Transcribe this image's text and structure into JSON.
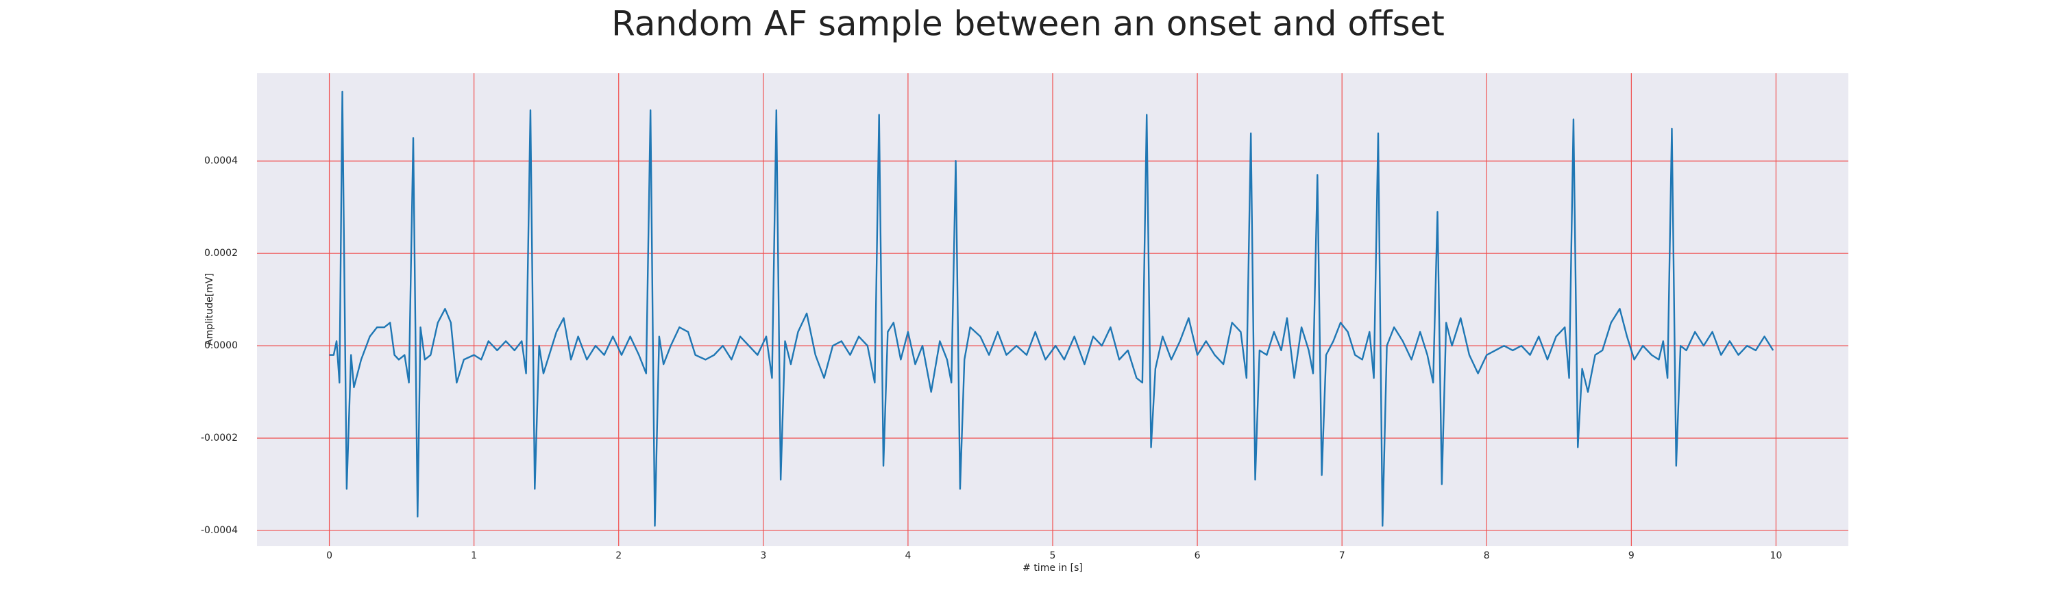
{
  "chart_data": {
    "type": "line",
    "title": "Random AF sample between an onset and offset",
    "x_label": "# time in [s]",
    "y_label": "Amplitude[mV]",
    "color": "#1f77b4",
    "grid": true,
    "grid_color": "#f05050",
    "background": "#eaeaf2",
    "xlim": [
      -0.5,
      10.5
    ],
    "ylim": [
      -0.000434,
      0.00059
    ],
    "xticks": [
      0,
      1,
      2,
      3,
      4,
      5,
      6,
      7,
      8,
      9,
      10
    ],
    "yticks": [
      -0.0004,
      -0.0002,
      {
        "value": 0,
        "label": "0.0000"
      },
      0.0002,
      0.0004
    ],
    "x": [
      0.0,
      0.03,
      0.05,
      0.07,
      0.09,
      0.12,
      0.15,
      0.17,
      0.22,
      0.28,
      0.33,
      0.38,
      0.42,
      0.45,
      0.48,
      0.52,
      0.55,
      0.58,
      0.61,
      0.63,
      0.66,
      0.7,
      0.75,
      0.8,
      0.84,
      0.88,
      0.93,
      1.0,
      1.05,
      1.1,
      1.16,
      1.22,
      1.28,
      1.33,
      1.36,
      1.39,
      1.42,
      1.45,
      1.48,
      1.52,
      1.57,
      1.62,
      1.67,
      1.72,
      1.78,
      1.84,
      1.9,
      1.96,
      2.02,
      2.08,
      2.14,
      2.19,
      2.22,
      2.25,
      2.28,
      2.31,
      2.36,
      2.42,
      2.48,
      2.53,
      2.6,
      2.66,
      2.72,
      2.78,
      2.84,
      2.9,
      2.96,
      3.02,
      3.06,
      3.09,
      3.12,
      3.15,
      3.19,
      3.24,
      3.3,
      3.36,
      3.42,
      3.48,
      3.54,
      3.6,
      3.66,
      3.72,
      3.77,
      3.8,
      3.83,
      3.86,
      3.9,
      3.95,
      4.0,
      4.05,
      4.1,
      4.16,
      4.22,
      4.27,
      4.3,
      4.33,
      4.36,
      4.39,
      4.43,
      4.5,
      4.56,
      4.62,
      4.68,
      4.75,
      4.82,
      4.88,
      4.95,
      5.02,
      5.08,
      5.15,
      5.22,
      5.28,
      5.34,
      5.4,
      5.46,
      5.52,
      5.58,
      5.62,
      5.65,
      5.68,
      5.71,
      5.76,
      5.82,
      5.88,
      5.94,
      6.0,
      6.06,
      6.12,
      6.18,
      6.24,
      6.3,
      6.34,
      6.37,
      6.4,
      6.43,
      6.48,
      6.53,
      6.58,
      6.62,
      6.67,
      6.72,
      6.77,
      6.8,
      6.83,
      6.86,
      6.89,
      6.94,
      6.99,
      7.04,
      7.09,
      7.14,
      7.19,
      7.22,
      7.25,
      7.28,
      7.31,
      7.36,
      7.42,
      7.48,
      7.54,
      7.59,
      7.63,
      7.66,
      7.69,
      7.72,
      7.76,
      7.82,
      7.88,
      7.94,
      8.0,
      8.06,
      8.12,
      8.18,
      8.24,
      8.3,
      8.36,
      8.42,
      8.48,
      8.54,
      8.57,
      8.6,
      8.63,
      8.66,
      8.7,
      8.75,
      8.8,
      8.86,
      8.92,
      8.97,
      9.02,
      9.08,
      9.14,
      9.19,
      9.22,
      9.25,
      9.28,
      9.31,
      9.34,
      9.38,
      9.44,
      9.5,
      9.56,
      9.62,
      9.68,
      9.74,
      9.8,
      9.86,
      9.92,
      9.98
    ],
    "values": [
      -2e-05,
      -2e-05,
      1e-05,
      -8e-05,
      0.00055,
      -0.00031,
      -2e-05,
      -9e-05,
      -3e-05,
      2e-05,
      4e-05,
      4e-05,
      5e-05,
      -2e-05,
      -3e-05,
      -2e-05,
      -8e-05,
      0.00045,
      -0.00037,
      4e-05,
      -3e-05,
      -2e-05,
      5e-05,
      8e-05,
      5e-05,
      -8e-05,
      -3e-05,
      -2e-05,
      -3e-05,
      1e-05,
      -1e-05,
      1e-05,
      -1e-05,
      1e-05,
      -6e-05,
      0.00051,
      -0.00031,
      0.0,
      -6e-05,
      -2e-05,
      3e-05,
      6e-05,
      -3e-05,
      2e-05,
      -3e-05,
      0.0,
      -2e-05,
      2e-05,
      -2e-05,
      2e-05,
      -2e-05,
      -6e-05,
      0.00051,
      -0.00039,
      2e-05,
      -4e-05,
      0.0,
      4e-05,
      3e-05,
      -2e-05,
      -3e-05,
      -2e-05,
      0.0,
      -3e-05,
      2e-05,
      0.0,
      -2e-05,
      2e-05,
      -7e-05,
      0.00051,
      -0.00029,
      1e-05,
      -4e-05,
      3e-05,
      7e-05,
      -2e-05,
      -7e-05,
      0.0,
      1e-05,
      -2e-05,
      2e-05,
      0.0,
      -8e-05,
      0.0005,
      -0.00026,
      3e-05,
      5e-05,
      -3e-05,
      3e-05,
      -4e-05,
      0.0,
      -0.0001,
      1e-05,
      -3e-05,
      -8e-05,
      0.0004,
      -0.00031,
      -3e-05,
      4e-05,
      2e-05,
      -2e-05,
      3e-05,
      -2e-05,
      0.0,
      -2e-05,
      3e-05,
      -3e-05,
      0.0,
      -3e-05,
      2e-05,
      -4e-05,
      2e-05,
      0.0,
      4e-05,
      -3e-05,
      -1e-05,
      -7e-05,
      -8e-05,
      0.0005,
      -0.00022,
      -5e-05,
      2e-05,
      -3e-05,
      1e-05,
      6e-05,
      -2e-05,
      1e-05,
      -2e-05,
      -4e-05,
      5e-05,
      3e-05,
      -7e-05,
      0.00046,
      -0.00029,
      -1e-05,
      -2e-05,
      3e-05,
      -1e-05,
      6e-05,
      -7e-05,
      4e-05,
      -1e-05,
      -6e-05,
      0.00037,
      -0.00028,
      -2e-05,
      1e-05,
      5e-05,
      3e-05,
      -2e-05,
      -3e-05,
      3e-05,
      -7e-05,
      0.00046,
      -0.00039,
      0.0,
      4e-05,
      1e-05,
      -3e-05,
      3e-05,
      -2e-05,
      -8e-05,
      0.00029,
      -0.0003,
      5e-05,
      0.0,
      6e-05,
      -2e-05,
      -6e-05,
      -2e-05,
      -1e-05,
      0.0,
      -1e-05,
      0.0,
      -2e-05,
      2e-05,
      -3e-05,
      2e-05,
      4e-05,
      -7e-05,
      0.00049,
      -0.00022,
      -5e-05,
      -0.0001,
      -2e-05,
      -1e-05,
      5e-05,
      8e-05,
      2e-05,
      -3e-05,
      0.0,
      -2e-05,
      -3e-05,
      1e-05,
      -7e-05,
      0.00047,
      -0.00026,
      0.0,
      -1e-05,
      3e-05,
      0.0,
      3e-05,
      -2e-05,
      1e-05,
      -2e-05,
      0.0,
      -1e-05,
      2e-05,
      -1e-05
    ]
  }
}
